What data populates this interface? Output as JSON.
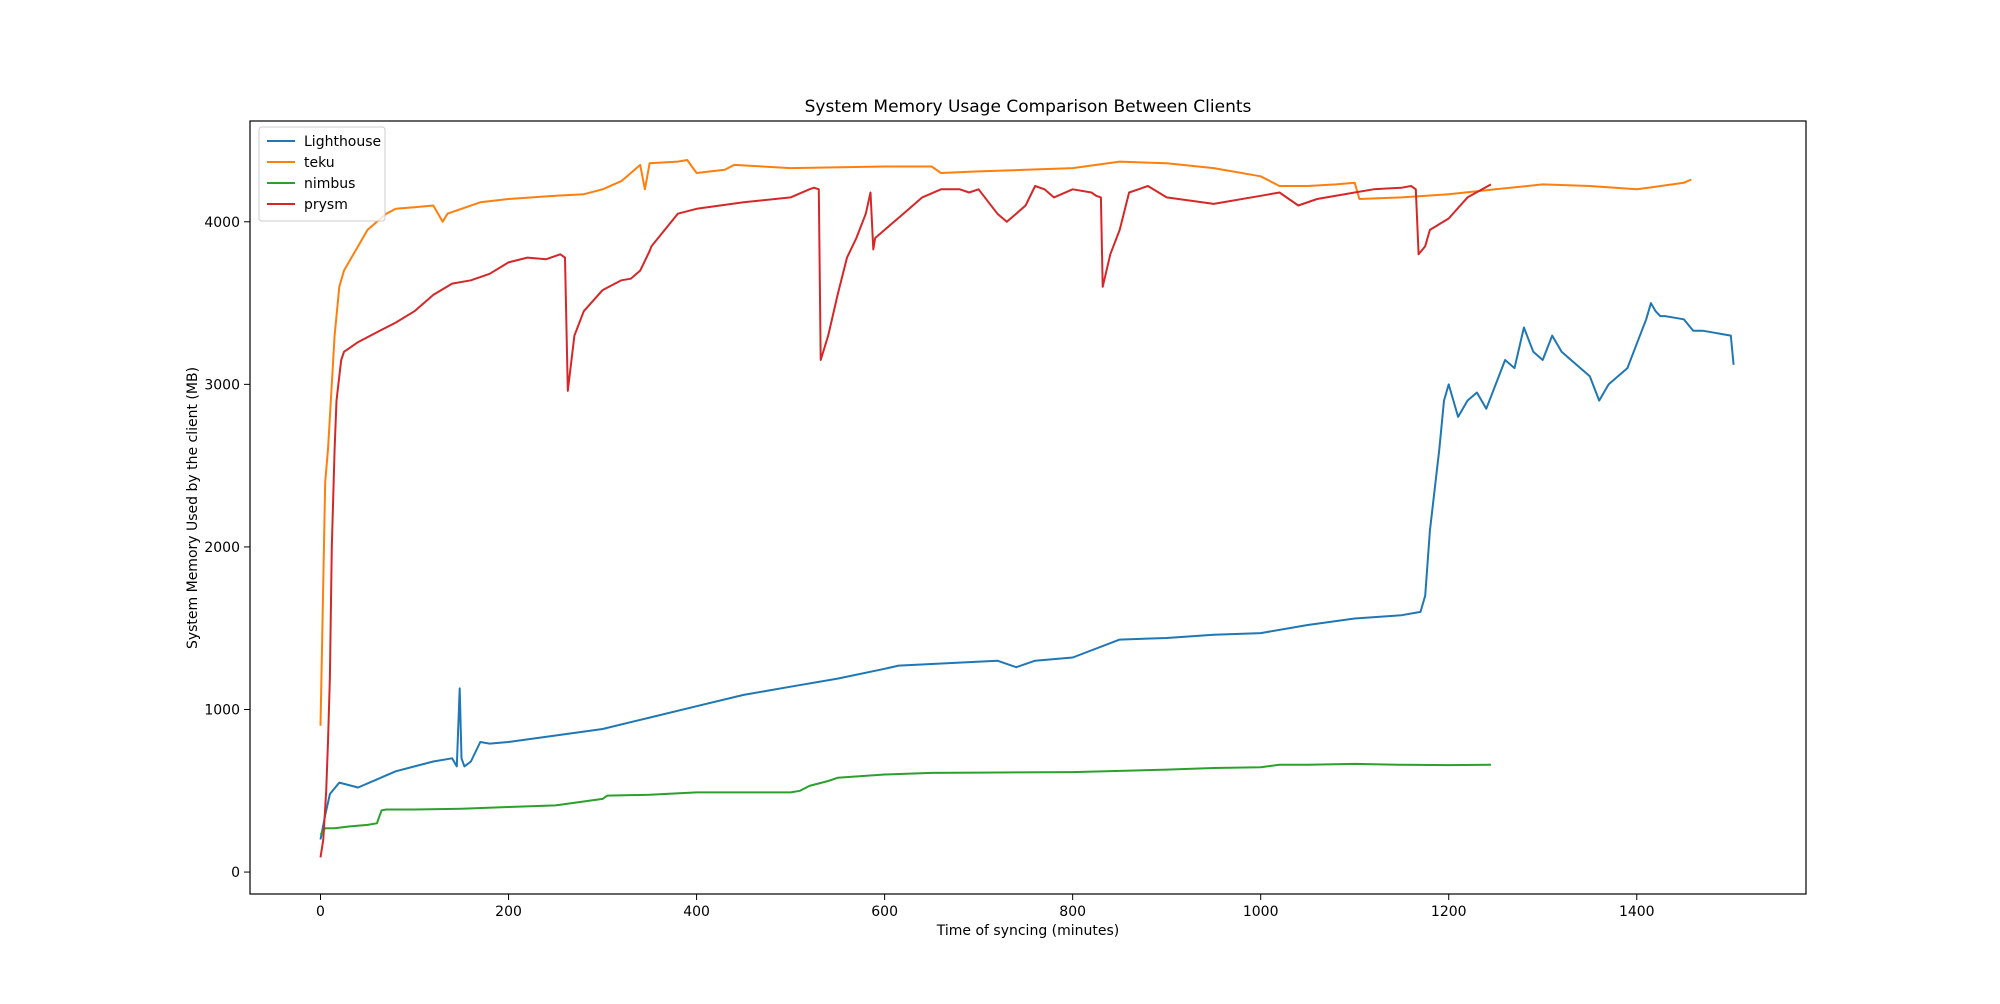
{
  "chart_data": {
    "type": "line",
    "title": "System Memory Usage Comparison Between Clients",
    "xlabel": "Time of syncing (minutes)",
    "ylabel": "System Memory Used by the client (MB)",
    "xlim": [
      -75,
      1580
    ],
    "ylim": [
      -135,
      4620
    ],
    "xticks": [
      0,
      200,
      400,
      600,
      800,
      1000,
      1200,
      1400
    ],
    "yticks": [
      0,
      1000,
      2000,
      3000,
      4000
    ],
    "grid": false,
    "legend_position": "upper-left",
    "series": [
      {
        "name": "Lighthouse",
        "color": "#1f77b4",
        "x": [
          0,
          5,
          10,
          20,
          40,
          60,
          80,
          100,
          120,
          140,
          145,
          148,
          150,
          153,
          160,
          170,
          180,
          200,
          250,
          300,
          350,
          400,
          450,
          500,
          550,
          600,
          615,
          720,
          740,
          760,
          800,
          850,
          900,
          950,
          1000,
          1050,
          1100,
          1150,
          1170,
          1175,
          1180,
          1185,
          1190,
          1195,
          1200,
          1210,
          1220,
          1230,
          1240,
          1250,
          1260,
          1270,
          1280,
          1290,
          1300,
          1310,
          1320,
          1330,
          1340,
          1350,
          1360,
          1370,
          1380,
          1390,
          1400,
          1410,
          1415,
          1420,
          1425,
          1430,
          1440,
          1450,
          1460,
          1470,
          1480,
          1490,
          1500,
          1503
        ],
        "y": [
          200,
          350,
          480,
          550,
          520,
          570,
          620,
          650,
          680,
          700,
          650,
          1130,
          700,
          650,
          680,
          800,
          790,
          800,
          840,
          880,
          950,
          1020,
          1090,
          1140,
          1190,
          1250,
          1270,
          1300,
          1260,
          1300,
          1320,
          1430,
          1440,
          1460,
          1470,
          1520,
          1560,
          1580,
          1600,
          1700,
          2100,
          2350,
          2600,
          2900,
          3000,
          2800,
          2900,
          2950,
          2850,
          3000,
          3150,
          3100,
          3350,
          3200,
          3150,
          3300,
          3200,
          3150,
          3100,
          3050,
          2900,
          3000,
          3050,
          3100,
          3250,
          3400,
          3500,
          3450,
          3420,
          3420,
          3410,
          3400,
          3330,
          3330,
          3320,
          3310,
          3300,
          3120
        ]
      },
      {
        "name": "teku",
        "color": "#ff7f0e",
        "x": [
          0,
          2,
          5,
          8,
          10,
          15,
          20,
          25,
          30,
          40,
          50,
          60,
          70,
          80,
          100,
          120,
          130,
          135,
          150,
          170,
          200,
          250,
          280,
          300,
          320,
          340,
          345,
          350,
          380,
          390,
          400,
          430,
          440,
          500,
          600,
          650,
          660,
          700,
          750,
          800,
          850,
          900,
          950,
          1000,
          1020,
          1050,
          1080,
          1100,
          1105,
          1150,
          1200,
          1250,
          1300,
          1350,
          1400,
          1450,
          1458
        ],
        "y": [
          900,
          1500,
          2400,
          2600,
          2800,
          3300,
          3600,
          3700,
          3750,
          3850,
          3950,
          4000,
          4050,
          4080,
          4090,
          4100,
          4000,
          4050,
          4080,
          4120,
          4140,
          4160,
          4170,
          4200,
          4250,
          4350,
          4200,
          4360,
          4370,
          4380,
          4300,
          4320,
          4350,
          4330,
          4340,
          4340,
          4300,
          4310,
          4320,
          4330,
          4370,
          4360,
          4330,
          4280,
          4220,
          4220,
          4230,
          4240,
          4140,
          4150,
          4170,
          4200,
          4230,
          4220,
          4200,
          4240,
          4260
        ]
      },
      {
        "name": "nimbus",
        "color": "#2ca02c",
        "x": [
          0,
          5,
          15,
          30,
          50,
          60,
          65,
          70,
          100,
          150,
          200,
          250,
          300,
          305,
          350,
          400,
          450,
          500,
          510,
          520,
          540,
          550,
          600,
          650,
          700,
          800,
          900,
          950,
          1000,
          1020,
          1050,
          1100,
          1150,
          1200,
          1245
        ],
        "y": [
          230,
          270,
          270,
          280,
          290,
          300,
          380,
          385,
          385,
          390,
          400,
          410,
          450,
          470,
          475,
          490,
          490,
          490,
          500,
          530,
          560,
          580,
          600,
          610,
          612,
          615,
          630,
          640,
          645,
          660,
          660,
          665,
          660,
          658,
          660
        ]
      },
      {
        "name": "prysm",
        "color": "#d62728",
        "x": [
          0,
          3,
          6,
          8,
          10,
          12,
          15,
          17,
          20,
          22,
          25,
          30,
          40,
          60,
          80,
          100,
          120,
          140,
          160,
          180,
          200,
          220,
          240,
          255,
          260,
          263,
          270,
          280,
          300,
          320,
          330,
          340,
          350,
          352,
          380,
          400,
          450,
          500,
          520,
          525,
          530,
          532,
          540,
          550,
          560,
          570,
          580,
          585,
          588,
          590,
          600,
          620,
          640,
          660,
          680,
          690,
          700,
          720,
          730,
          740,
          750,
          760,
          770,
          780,
          800,
          820,
          825,
          830,
          832,
          840,
          850,
          860,
          870,
          880,
          900,
          950,
          1000,
          1020,
          1040,
          1060,
          1100,
          1120,
          1150,
          1160,
          1165,
          1168,
          1175,
          1180,
          1200,
          1220,
          1245
        ],
        "y": [
          90,
          200,
          500,
          800,
          1200,
          2000,
          2600,
          2900,
          3050,
          3150,
          3200,
          3220,
          3260,
          3320,
          3380,
          3450,
          3550,
          3620,
          3640,
          3680,
          3750,
          3780,
          3770,
          3800,
          3780,
          2960,
          3300,
          3450,
          3580,
          3640,
          3650,
          3700,
          3820,
          3850,
          4050,
          4080,
          4120,
          4150,
          4200,
          4210,
          4200,
          3150,
          3300,
          3550,
          3780,
          3900,
          4050,
          4180,
          3830,
          3900,
          3950,
          4050,
          4150,
          4200,
          4200,
          4180,
          4200,
          4050,
          4000,
          4050,
          4100,
          4220,
          4200,
          4150,
          4200,
          4180,
          4160,
          4150,
          3600,
          3800,
          3950,
          4180,
          4200,
          4220,
          4150,
          4110,
          4160,
          4180,
          4100,
          4140,
          4180,
          4200,
          4210,
          4220,
          4200,
          3800,
          3850,
          3950,
          4020,
          4150,
          4230
        ]
      }
    ]
  }
}
